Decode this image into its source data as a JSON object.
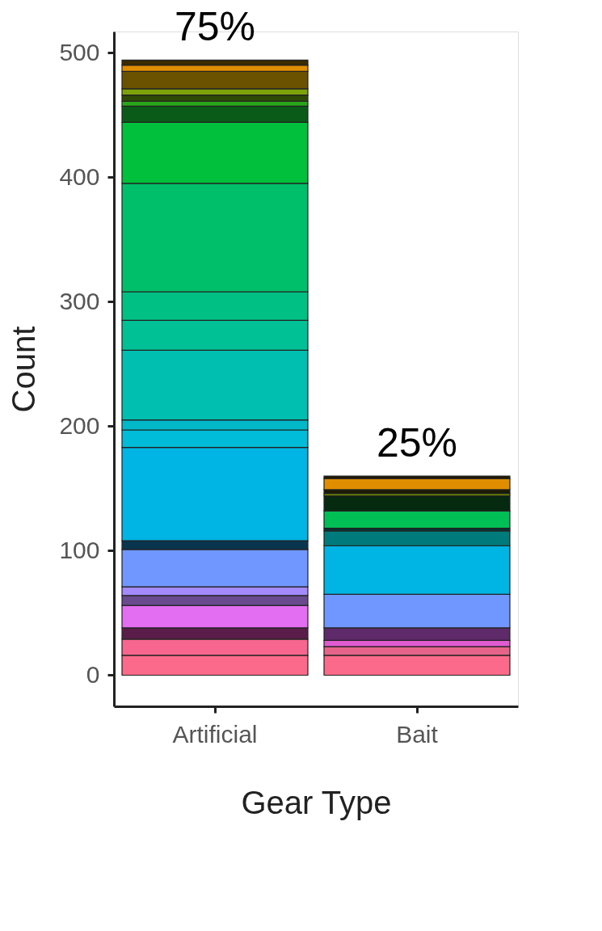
{
  "chart_data": {
    "type": "bar",
    "stacked": true,
    "xlabel": "Gear Type",
    "ylabel": "Count",
    "categories": [
      "Artificial",
      "Bait"
    ],
    "ylim": [
      -25,
      517
    ],
    "yticks": [
      0,
      100,
      200,
      300,
      400,
      500
    ],
    "grid": false,
    "legend": false,
    "annotations": [
      {
        "text": "75%",
        "x": "Artificial",
        "y": 494
      },
      {
        "text": "25%",
        "x": "Bait",
        "y": 160
      }
    ],
    "series": [
      {
        "color": "#fb6a8a",
        "values": [
          16,
          null
        ]
      },
      {
        "color": "#f7668f",
        "values": [
          13,
          null
        ]
      },
      {
        "color": "#5a1d4a",
        "values": [
          9,
          null
        ]
      },
      {
        "color": "#e36ef2",
        "values": [
          18,
          null
        ]
      },
      {
        "color": "#6a4a8e",
        "values": [
          8,
          null
        ]
      },
      {
        "color": "#a58afc",
        "values": [
          7,
          null
        ]
      },
      {
        "color": "#7097ff",
        "values": [
          30,
          null
        ]
      },
      {
        "color": "#0a3550",
        "values": [
          7,
          null
        ]
      },
      {
        "color": "#00b4e4",
        "values": [
          75,
          null
        ]
      },
      {
        "color": "#00bcd8",
        "values": [
          14,
          null
        ]
      },
      {
        "color": "#00b8c8",
        "values": [
          8,
          null
        ]
      },
      {
        "color": "#00bfb0",
        "values": [
          56,
          null
        ]
      },
      {
        "color": "#00c096",
        "values": [
          24,
          null
        ]
      },
      {
        "color": "#00c084",
        "values": [
          23,
          null
        ]
      },
      {
        "color": "#00bf6a",
        "values": [
          87,
          null
        ]
      },
      {
        "color": "#00c03c",
        "values": [
          49,
          null
        ]
      },
      {
        "color": "#0a5a18",
        "values": [
          13,
          null
        ]
      },
      {
        "color": "#2aa51a",
        "values": [
          4,
          null
        ]
      },
      {
        "color": "#2f4a05",
        "values": [
          5,
          null
        ]
      },
      {
        "color": "#7da20a",
        "values": [
          5,
          null
        ]
      },
      {
        "color": "#6a5200",
        "values": [
          14,
          null
        ]
      },
      {
        "color": "#e08e00",
        "values": [
          5,
          null
        ]
      },
      {
        "color": "#3a2a00",
        "values": [
          4,
          null
        ]
      },
      {
        "color": "#fb6a8a",
        "values": [
          null,
          16
        ]
      },
      {
        "color": "#e6648a",
        "values": [
          null,
          7
        ]
      },
      {
        "color": "#e05ad0",
        "values": [
          null,
          5
        ]
      },
      {
        "color": "#5e2a6a",
        "values": [
          null,
          10
        ]
      },
      {
        "color": "#7097ff",
        "values": [
          null,
          27
        ]
      },
      {
        "color": "#00b4e4",
        "values": [
          null,
          39
        ]
      },
      {
        "color": "#007a7a",
        "values": [
          null,
          12
        ]
      },
      {
        "color": "#003333",
        "values": [
          null,
          2
        ]
      },
      {
        "color": "#00bf55",
        "values": [
          null,
          14
        ]
      },
      {
        "color": "#062a10",
        "values": [
          null,
          12
        ]
      },
      {
        "color": "#6b8a00",
        "values": [
          null,
          2
        ]
      },
      {
        "color": "#1a1a00",
        "values": [
          null,
          3
        ]
      },
      {
        "color": "#e08e00",
        "values": [
          null,
          9
        ]
      },
      {
        "color": "#221800",
        "values": [
          null,
          2
        ]
      }
    ]
  }
}
